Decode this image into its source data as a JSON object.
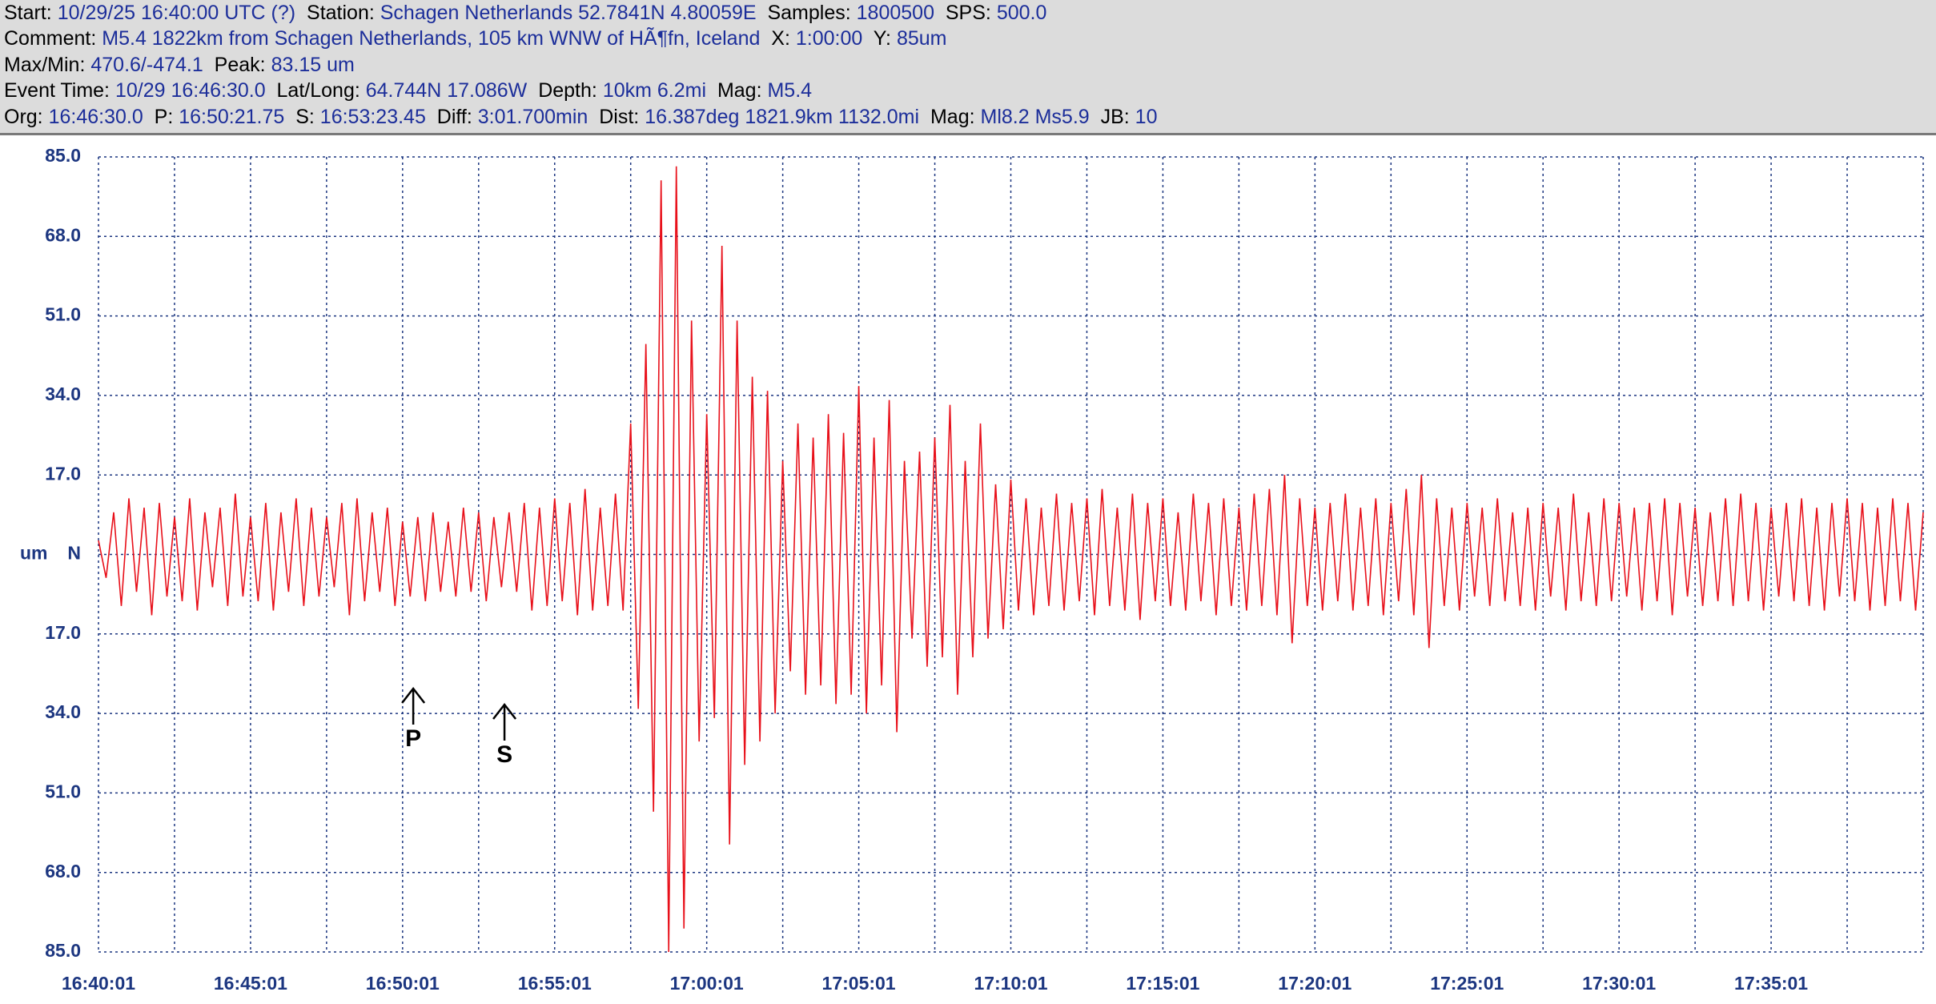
{
  "header": {
    "lines": [
      [
        "Start:",
        "10/29/25 16:40:00 UTC (?)",
        "Station:",
        "Schagen Netherlands 52.7841N 4.80059E",
        "Samples:",
        "1800500",
        "SPS:",
        "500.0"
      ],
      [
        "Comment:",
        "M5.4 1822km from Schagen Netherlands, 105 km WNW of HÃ¶fn, Iceland",
        "X:",
        "1:00:00",
        "Y:",
        "85um"
      ],
      [
        "Max/Min:",
        "470.6/-474.1",
        "Peak:",
        "83.15 um"
      ],
      [
        "Event Time:",
        "10/29 16:46:30.0",
        "Lat/Long:",
        "64.744N 17.086W",
        "Depth:",
        "10km 6.2mi",
        "Mag:",
        "M5.4"
      ],
      [
        "Org:",
        "16:46:30.0",
        "P:",
        "16:50:21.75",
        "S:",
        "16:53:23.45",
        "Diff:",
        "3:01.700min",
        "Dist:",
        "16.387deg 1821.9km 1132.0mi",
        "Mag:",
        "Ml8.2 Ms5.9",
        "JB:",
        "10"
      ]
    ]
  },
  "chart_data": {
    "type": "line",
    "ylabel": "um",
    "color": "#e8101a",
    "xlim": [
      0,
      60
    ],
    "ylim": [
      -85,
      85
    ],
    "grid": true,
    "xticks": [
      {
        "value": 0,
        "label": "16:40:01"
      },
      {
        "value": 2.5,
        "label": null
      },
      {
        "value": 5,
        "label": "16:45:01"
      },
      {
        "value": 7.5,
        "label": null
      },
      {
        "value": 10,
        "label": "16:50:01"
      },
      {
        "value": 12.5,
        "label": null
      },
      {
        "value": 15,
        "label": "16:55:01"
      },
      {
        "value": 17.5,
        "label": null
      },
      {
        "value": 20,
        "label": "17:00:01"
      },
      {
        "value": 22.5,
        "label": null
      },
      {
        "value": 25,
        "label": "17:05:01"
      },
      {
        "value": 27.5,
        "label": null
      },
      {
        "value": 30,
        "label": "17:10:01"
      },
      {
        "value": 32.5,
        "label": null
      },
      {
        "value": 35,
        "label": "17:15:01"
      },
      {
        "value": 37.5,
        "label": null
      },
      {
        "value": 40,
        "label": "17:20:01"
      },
      {
        "value": 42.5,
        "label": null
      },
      {
        "value": 45,
        "label": "17:25:01"
      },
      {
        "value": 47.5,
        "label": null
      },
      {
        "value": 50,
        "label": "17:30:01"
      },
      {
        "value": 52.5,
        "label": null
      },
      {
        "value": 55,
        "label": "17:35:01"
      },
      {
        "value": 57.5,
        "label": null
      },
      {
        "value": 60,
        "label": null
      }
    ],
    "yticks": [
      {
        "value": 85,
        "label": "85.0"
      },
      {
        "value": 68,
        "label": "68.0"
      },
      {
        "value": 51,
        "label": "51.0"
      },
      {
        "value": 34,
        "label": "34.0"
      },
      {
        "value": 17,
        "label": "17.0"
      },
      {
        "value": 0,
        "label": "N"
      },
      {
        "value": -17,
        "label": "17.0"
      },
      {
        "value": -34,
        "label": "34.0"
      },
      {
        "value": -51,
        "label": "51.0"
      },
      {
        "value": -68,
        "label": "68.0"
      },
      {
        "value": -85,
        "label": "85.0"
      }
    ],
    "annotations": [
      {
        "text": "P",
        "x": 10.35
      },
      {
        "text": "S",
        "x": 13.35
      }
    ],
    "values": [
      3,
      -5,
      9,
      -11,
      12,
      -8,
      10,
      -13,
      11,
      -9,
      8,
      -10,
      12,
      -12,
      9,
      -7,
      10,
      -11,
      13,
      -9,
      8,
      -10,
      11,
      -12,
      9,
      -8,
      12,
      -11,
      10,
      -9,
      8,
      -7,
      11,
      -13,
      12,
      -10,
      9,
      -8,
      10,
      -11,
      7,
      -9,
      8,
      -10,
      9,
      -8,
      7,
      -9,
      10,
      -8,
      9,
      -10,
      8,
      -7,
      9,
      -8,
      11,
      -12,
      10,
      -11,
      12,
      -10,
      11,
      -13,
      14,
      -12,
      10,
      -11,
      13,
      -12,
      28,
      -33,
      45,
      -55,
      80,
      -85,
      83,
      -80,
      50,
      -40,
      30,
      -35,
      66,
      -62,
      50,
      -45,
      38,
      -40,
      35,
      -34,
      20,
      -25,
      28,
      -30,
      25,
      -28,
      30,
      -32,
      26,
      -30,
      36,
      -34,
      25,
      -28,
      33,
      -38,
      20,
      -18,
      22,
      -24,
      25,
      -22,
      32,
      -30,
      20,
      -22,
      28,
      -18,
      15,
      -16,
      16,
      -12,
      12,
      -13,
      10,
      -11,
      13,
      -12,
      11,
      -10,
      12,
      -13,
      14,
      -11,
      10,
      -12,
      13,
      -14,
      11,
      -10,
      12,
      -11,
      9,
      -12,
      13,
      -10,
      11,
      -13,
      12,
      -11,
      10,
      -12,
      13,
      -11,
      14,
      -13,
      17,
      -19,
      12,
      -11,
      10,
      -12,
      11,
      -10,
      13,
      -12,
      10,
      -11,
      12,
      -13,
      11,
      -10,
      14,
      -13,
      17,
      -20,
      12,
      -11,
      10,
      -12,
      11,
      -9,
      10,
      -11,
      12,
      -10,
      9,
      -11,
      10,
      -12,
      11,
      -9,
      10,
      -12,
      13,
      -10,
      9,
      -11,
      12,
      -10,
      11,
      -9,
      10,
      -12,
      11,
      -10,
      12,
      -13,
      11,
      -9,
      10,
      -11,
      9,
      -10,
      12,
      -11,
      13,
      -10,
      11,
      -12,
      10,
      -9,
      11,
      -10,
      12,
      -11,
      10,
      -12,
      11,
      -9,
      12,
      -10,
      11,
      -12,
      10,
      -11,
      12,
      -10,
      11,
      -12,
      9
    ]
  }
}
